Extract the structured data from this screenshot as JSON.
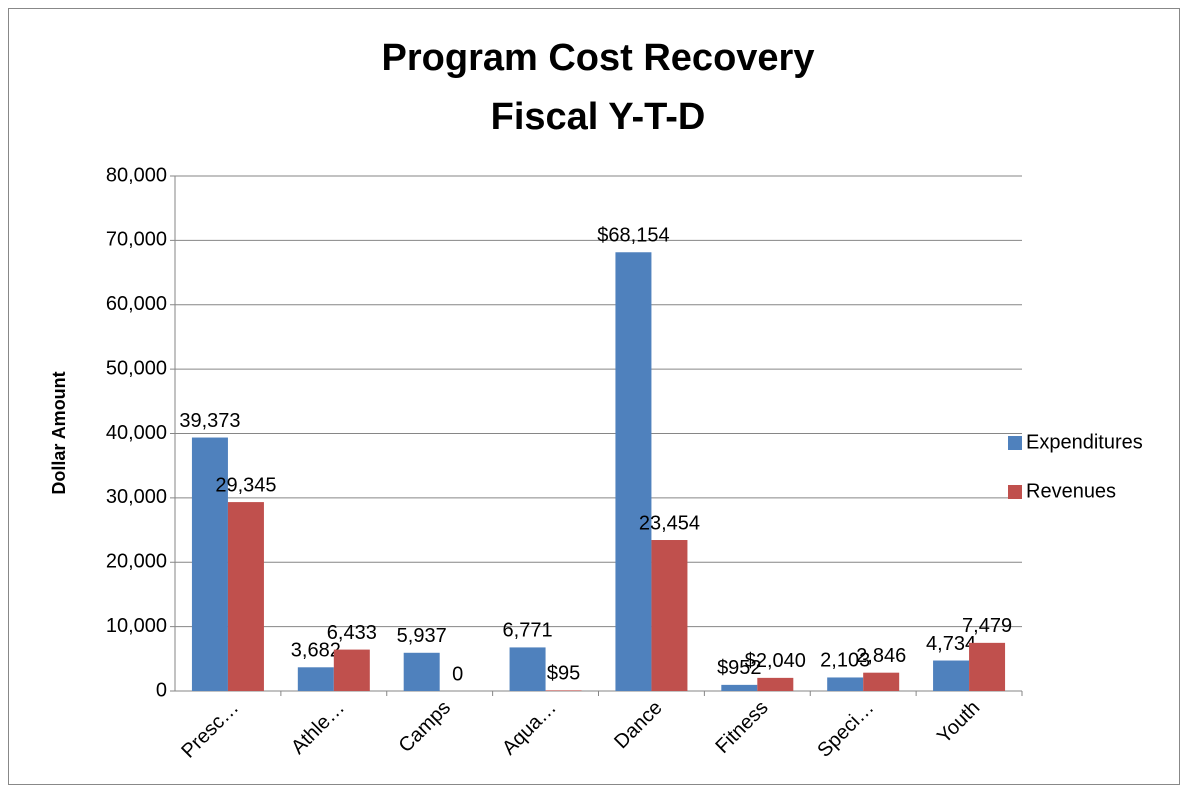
{
  "chart_data": {
    "type": "bar",
    "title": "Program Cost Recovery",
    "subtitle": "Fiscal Y-T-D",
    "y_label": "Dollar Amount",
    "categories": [
      "Presc…",
      "Athle…",
      "Camps",
      "Aqua…",
      "Dance",
      "Fitness",
      "Speci…",
      "Youth"
    ],
    "series": [
      {
        "name": "Expenditures",
        "color": "#4f81bd",
        "values": [
          39373,
          3682,
          5937,
          6771,
          68154,
          952,
          2103,
          4734
        ],
        "value_labels": [
          "39,373",
          "3,682",
          "5,937",
          "6,771",
          "$68,154",
          "$952",
          "2,103",
          "4,734"
        ]
      },
      {
        "name": "Revenues",
        "color": "#c0504d",
        "values": [
          29345,
          6433,
          0,
          95,
          23454,
          2040,
          2846,
          7479
        ],
        "value_labels": [
          "29,345",
          "6,433",
          "0",
          "$95",
          "23,454",
          "$2,040",
          "2,846",
          "7,479"
        ]
      }
    ],
    "ylim": [
      0,
      80000
    ],
    "yticks": [
      0,
      {
        "value": 10000,
        "label": "10,000"
      },
      {
        "value": 20000,
        "label": "20,000"
      },
      {
        "value": 30000,
        "label": "30,000"
      },
      {
        "value": 40000,
        "label": "40,000"
      },
      {
        "value": 50000,
        "label": "50,000"
      },
      {
        "value": 60000,
        "label": "60,000"
      },
      {
        "value": 70000,
        "label": "70,000"
      },
      {
        "value": 80000,
        "label": "80,000"
      }
    ],
    "grid": true,
    "legend": "right"
  }
}
